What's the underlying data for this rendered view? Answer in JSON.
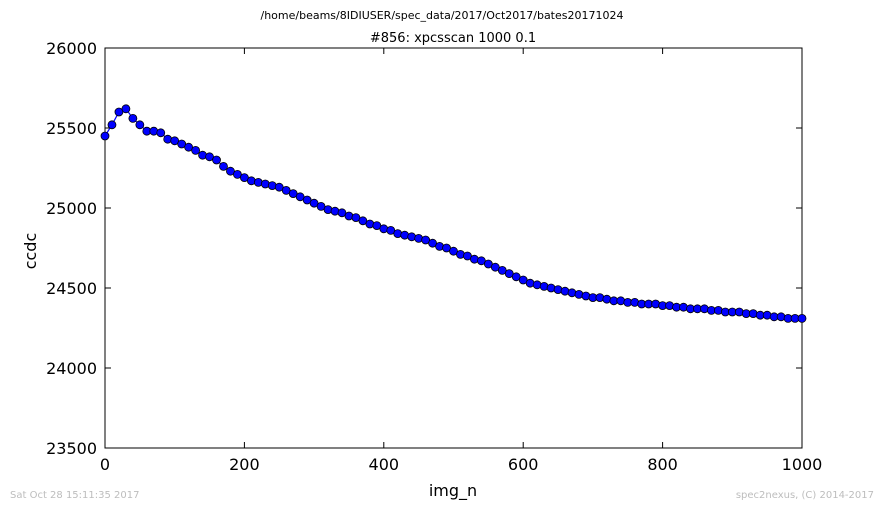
{
  "figure": {
    "path_title": "/home/beams/8IDIUSER/spec_data/2017/Oct2017/bates20171024",
    "footer_left": "Sat Oct 28 15:11:35 2017",
    "footer_right": "spec2nexus, (C) 2014-2017"
  },
  "chart_data": {
    "type": "line",
    "title": "#856: xpcsscan 1000 0.1",
    "xlabel": "img_n",
    "ylabel": "ccdc",
    "xlim": [
      0,
      1000
    ],
    "ylim": [
      23500,
      26000
    ],
    "xticks": [
      0,
      200,
      400,
      600,
      800,
      1000
    ],
    "xtick_labels": [
      "0",
      "200",
      "400",
      "600",
      "800",
      "1000"
    ],
    "yticks": [
      23500,
      24000,
      24500,
      25000,
      25500,
      26000
    ],
    "ytick_labels": [
      "23500",
      "24000",
      "24500",
      "25000",
      "25500",
      "26000"
    ],
    "grid": false,
    "series": [
      {
        "marker": "circle",
        "color": "#0000ff",
        "marker_edge_color": "#000000",
        "x": [
          0,
          10,
          20,
          30,
          40,
          50,
          60,
          70,
          80,
          90,
          100,
          110,
          120,
          130,
          140,
          150,
          160,
          170,
          180,
          190,
          200,
          210,
          220,
          230,
          240,
          250,
          260,
          270,
          280,
          290,
          300,
          310,
          320,
          330,
          340,
          350,
          360,
          370,
          380,
          390,
          400,
          410,
          420,
          430,
          440,
          450,
          460,
          470,
          480,
          490,
          500,
          510,
          520,
          530,
          540,
          550,
          560,
          570,
          580,
          590,
          600,
          610,
          620,
          630,
          640,
          650,
          660,
          670,
          680,
          690,
          700,
          710,
          720,
          730,
          740,
          750,
          760,
          770,
          780,
          790,
          800,
          810,
          820,
          830,
          840,
          850,
          860,
          870,
          880,
          890,
          900,
          910,
          920,
          930,
          940,
          950,
          960,
          970,
          980,
          990,
          1000
        ],
        "y": [
          25450,
          25520,
          25600,
          25620,
          25560,
          25520,
          25480,
          25480,
          25470,
          25430,
          25420,
          25400,
          25380,
          25360,
          25330,
          25320,
          25300,
          25260,
          25230,
          25210,
          25190,
          25170,
          25160,
          25150,
          25140,
          25130,
          25110,
          25090,
          25070,
          25050,
          25030,
          25010,
          24990,
          24980,
          24970,
          24950,
          24940,
          24920,
          24900,
          24890,
          24870,
          24860,
          24840,
          24830,
          24820,
          24810,
          24800,
          24780,
          24760,
          24750,
          24730,
          24710,
          24700,
          24680,
          24670,
          24650,
          24630,
          24610,
          24590,
          24570,
          24550,
          24530,
          24520,
          24510,
          24500,
          24490,
          24480,
          24470,
          24460,
          24450,
          24440,
          24440,
          24430,
          24420,
          24420,
          24410,
          24410,
          24400,
          24400,
          24400,
          24390,
          24390,
          24380,
          24380,
          24370,
          24370,
          24370,
          24360,
          24360,
          24350,
          24350,
          24350,
          24340,
          24340,
          24330,
          24330,
          24320,
          24320,
          24310,
          24310,
          24310
        ]
      }
    ]
  }
}
